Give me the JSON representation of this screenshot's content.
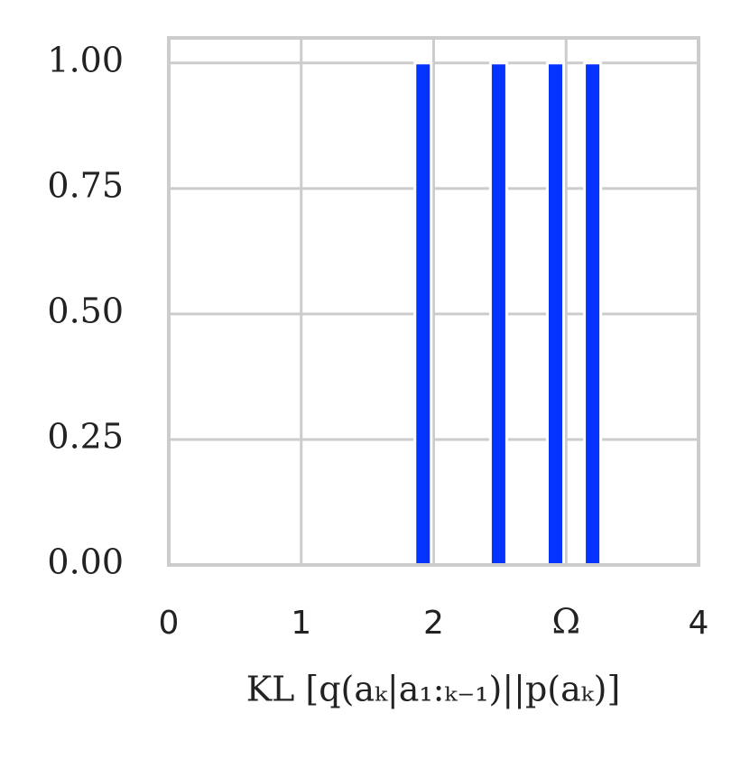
{
  "chart_data": {
    "type": "bar",
    "x": [
      1.92,
      2.49,
      2.92,
      3.2
    ],
    "values": [
      1,
      1,
      1,
      1
    ],
    "color": "#0433ff",
    "xlabel": "KL [q(aₖ|a₁:ₖ₋₁)||p(aₖ)]",
    "xlim": [
      0,
      4
    ],
    "xticks": [
      0,
      1,
      2,
      {
        "value": 3,
        "label": "Ω"
      },
      4
    ],
    "ylim": [
      0,
      1.05
    ],
    "yticks": [
      {
        "value": 0,
        "label": "0.00"
      },
      {
        "value": 0.25,
        "label": "0.25"
      },
      {
        "value": 0.5,
        "label": "0.50"
      },
      {
        "value": 0.75,
        "label": "0.75"
      },
      {
        "value": 1,
        "label": "1.00"
      }
    ],
    "grid": true
  }
}
